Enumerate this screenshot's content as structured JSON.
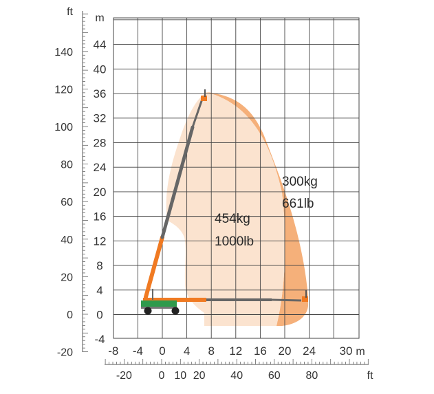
{
  "units": {
    "meter": "m",
    "feet": "ft"
  },
  "axes": {
    "m_left": [
      "44",
      "40",
      "36",
      "32",
      "28",
      "24",
      "20",
      "16",
      "12",
      "8",
      "4",
      "0",
      "-4"
    ],
    "ft_left": [
      "140",
      "120",
      "100",
      "80",
      "60",
      "40",
      "20",
      "0",
      "-20"
    ],
    "m_bottom": [
      "-8",
      "-4",
      "0",
      "4",
      "8",
      "12",
      "16",
      "20",
      "24",
      "30"
    ],
    "ft_bottom": [
      "-20",
      "0",
      "10",
      "20",
      "40",
      "60",
      "80"
    ]
  },
  "zones": {
    "inner": {
      "kg": "454kg",
      "lb": "1000lb",
      "color": "#fbe3cf"
    },
    "outer": {
      "kg": "300kg",
      "lb": "661lb",
      "color": "#f5b07a"
    }
  },
  "colors": {
    "grid": "#444444",
    "boom_orange": "#f07a22",
    "boom_gray": "#666666",
    "chassis_green": "#2e9a4c"
  },
  "icons": {
    "platform": "basket-icon",
    "wheel": "wheel-icon"
  }
}
